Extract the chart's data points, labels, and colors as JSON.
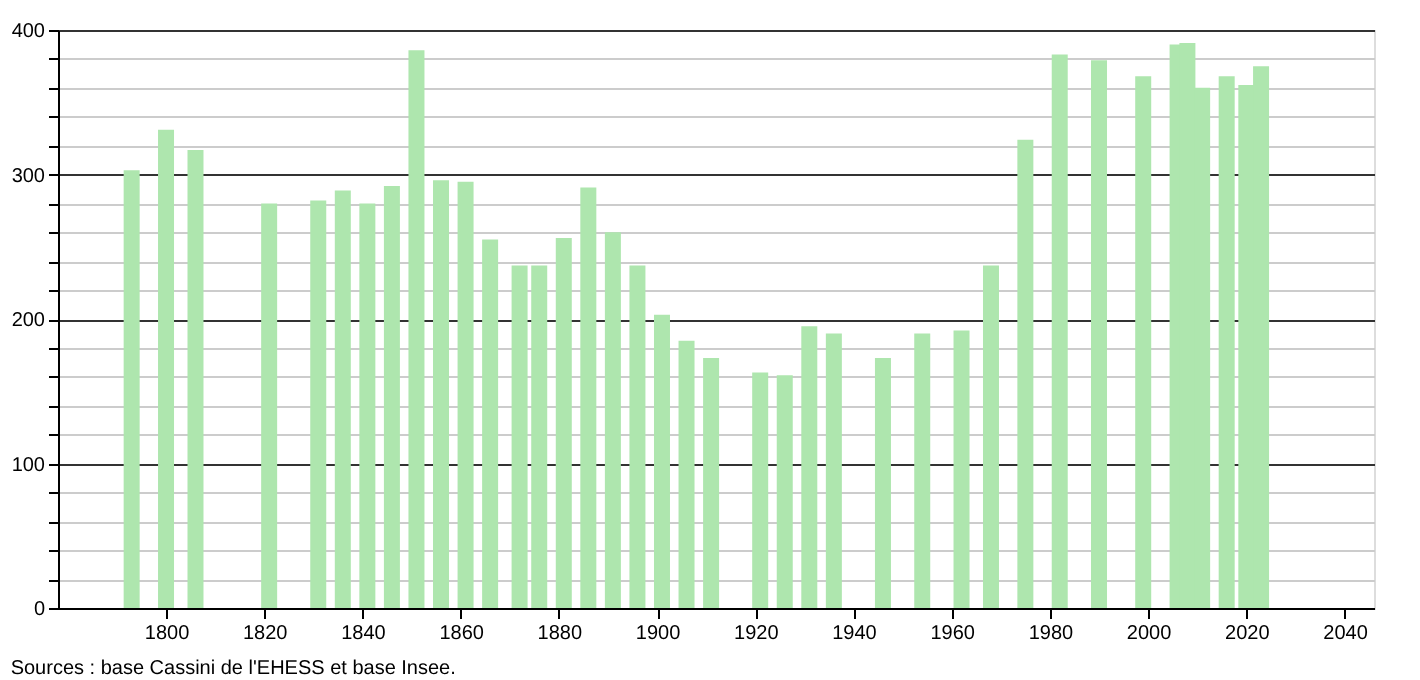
{
  "chart_data": {
    "type": "bar",
    "x": [
      1793,
      1800,
      1806,
      1821,
      1831,
      1836,
      1841,
      1846,
      1851,
      1856,
      1861,
      1866,
      1872,
      1876,
      1881,
      1886,
      1891,
      1896,
      1901,
      1906,
      1911,
      1921,
      1926,
      1931,
      1936,
      1946,
      1954,
      1962,
      1968,
      1975,
      1982,
      1990,
      1999,
      2006,
      2008,
      2011,
      2016,
      2020,
      2023
    ],
    "values": [
      303,
      331,
      317,
      280,
      282,
      289,
      280,
      292,
      386,
      296,
      295,
      255,
      237,
      237,
      256,
      291,
      260,
      237,
      203,
      185,
      173,
      163,
      161,
      195,
      190,
      173,
      190,
      192,
      237,
      324,
      383,
      379,
      368,
      390,
      391,
      360,
      368,
      362,
      375
    ],
    "color": "#aee6ae",
    "xlim": [
      1778,
      2046
    ],
    "xticks": [
      1800,
      1820,
      1840,
      1860,
      1880,
      1900,
      1920,
      1940,
      1960,
      1980,
      2000,
      2020,
      2040
    ],
    "ylim": [
      0,
      400
    ],
    "yticks": [
      0,
      {
        "value": 20,
        "label": null
      },
      {
        "value": 40,
        "label": null
      },
      {
        "value": 60,
        "label": null
      },
      {
        "value": 80,
        "label": null
      },
      100,
      {
        "value": 120,
        "label": null
      },
      {
        "value": 140,
        "label": null
      },
      {
        "value": 160,
        "label": null
      },
      {
        "value": 180,
        "label": null
      },
      200,
      {
        "value": 220,
        "label": null
      },
      {
        "value": 240,
        "label": null
      },
      {
        "value": 260,
        "label": null
      },
      {
        "value": 280,
        "label": null
      },
      300,
      {
        "value": 320,
        "label": null
      },
      {
        "value": 340,
        "label": null
      },
      {
        "value": 360,
        "label": null
      },
      {
        "value": 380,
        "label": null
      },
      400
    ],
    "grid": "y",
    "annotations": [
      "Sources : base Cassini de l'EHESS et base Insee."
    ]
  }
}
